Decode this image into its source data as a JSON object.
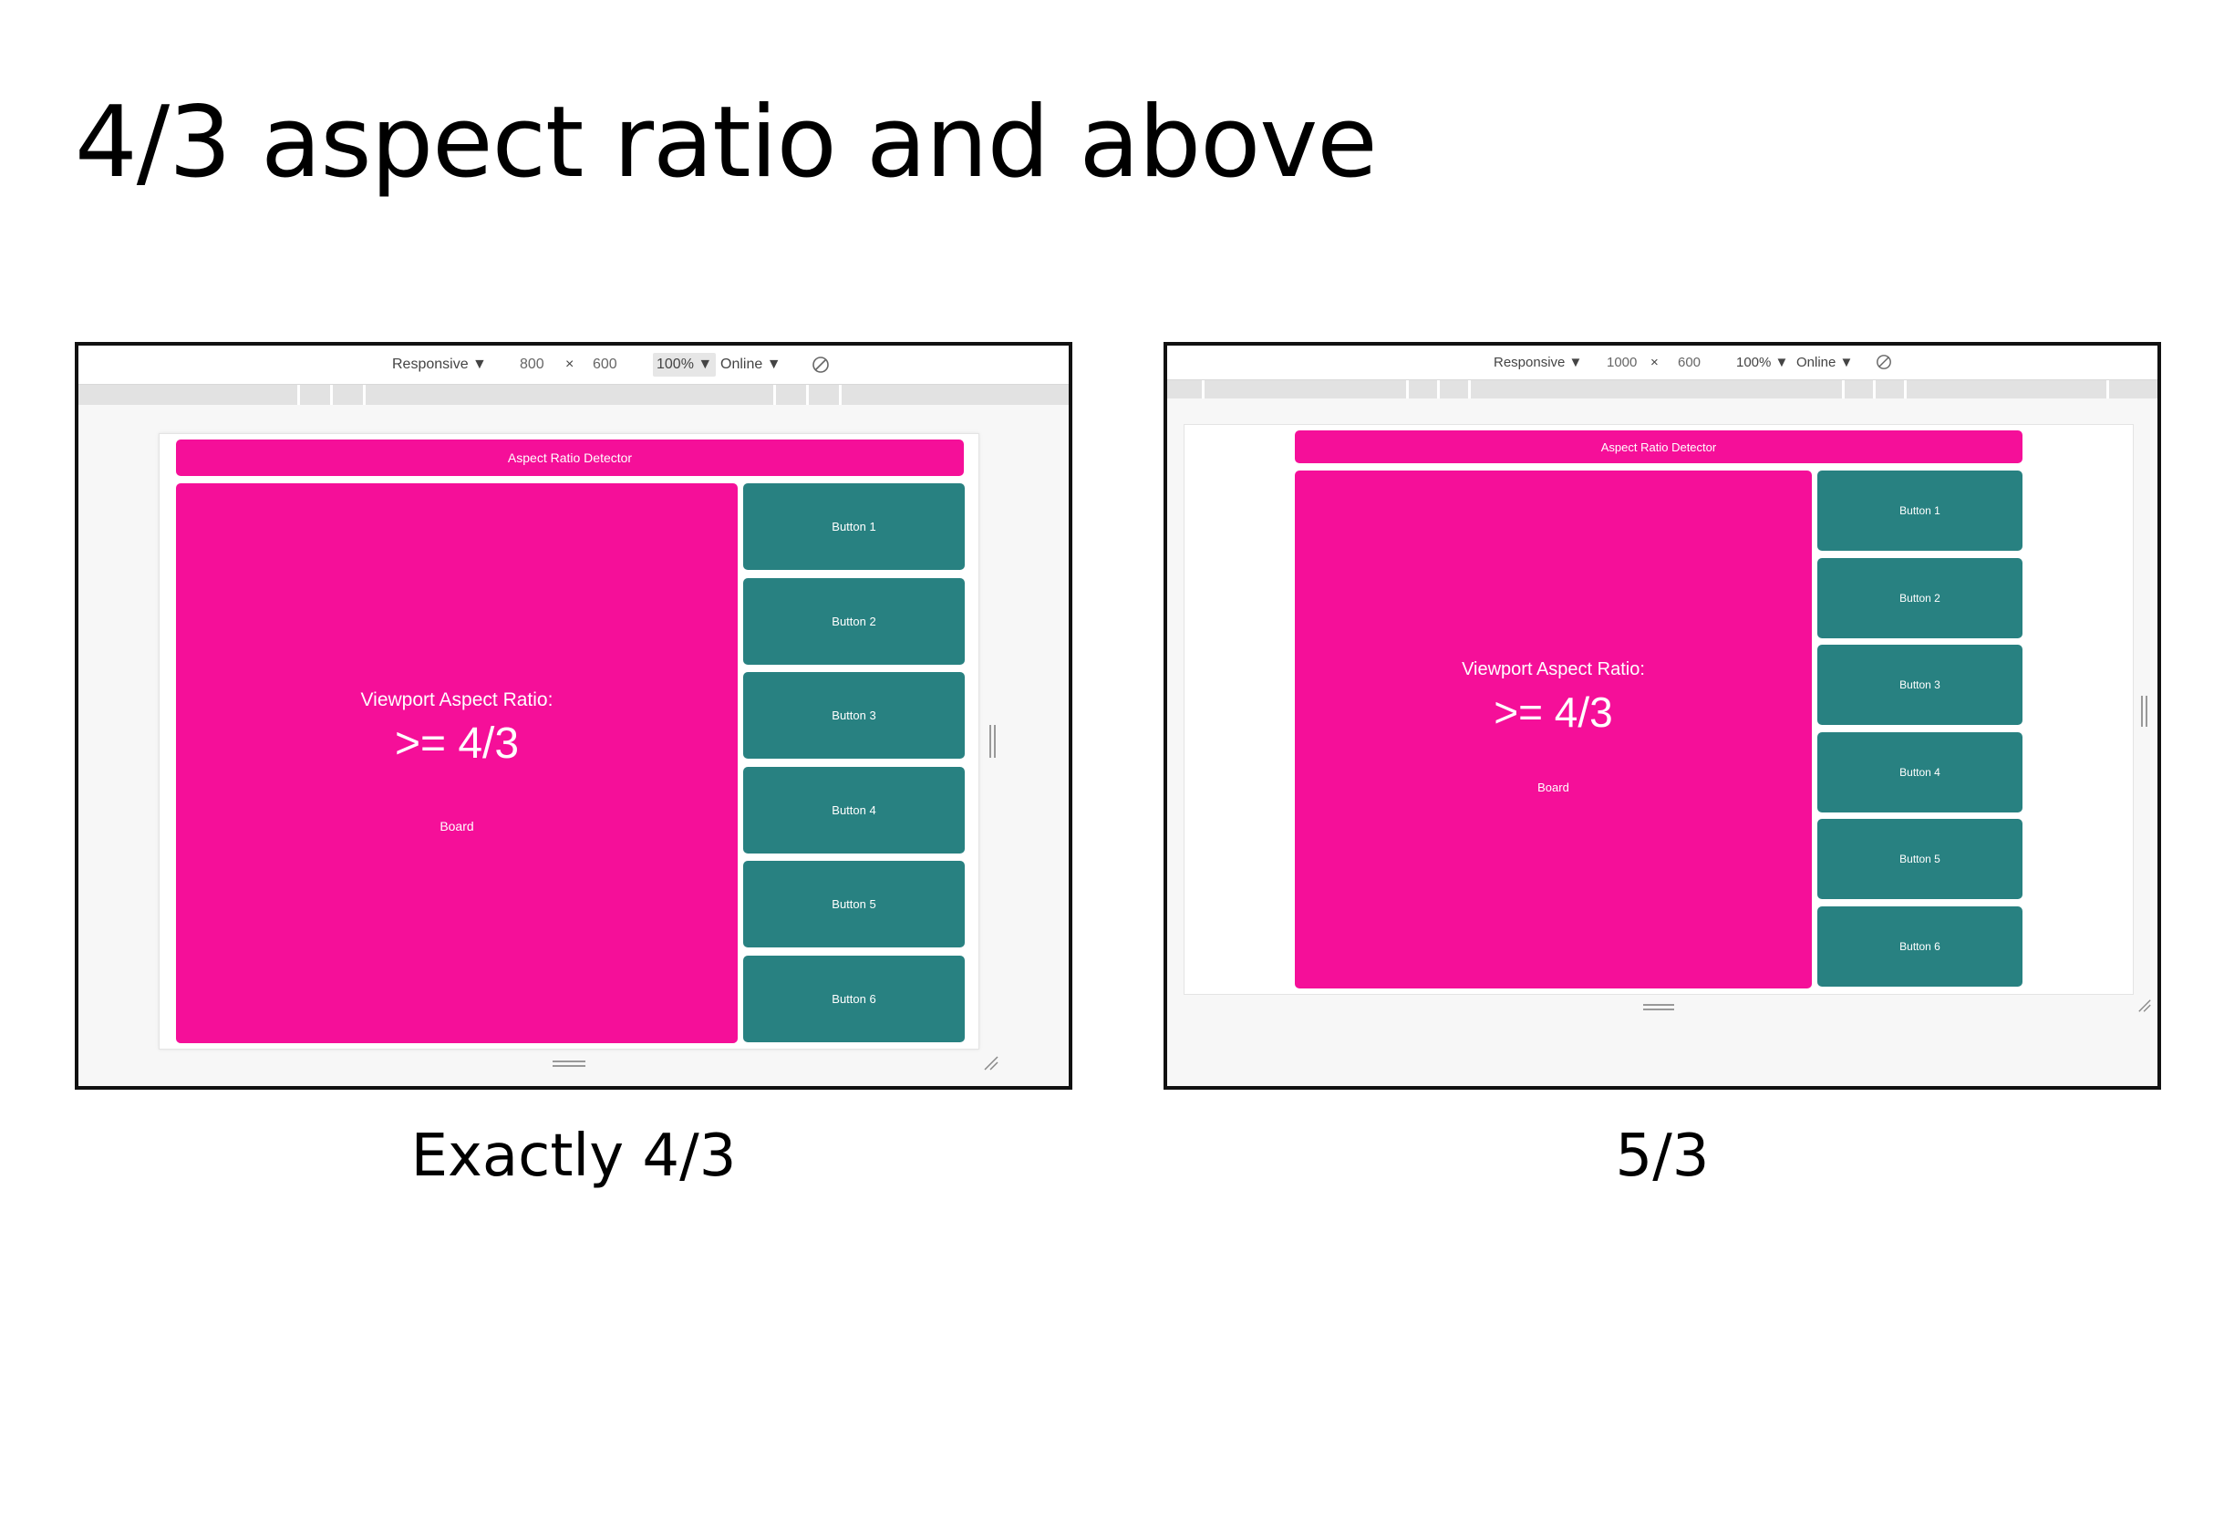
{
  "page": {
    "title": "4/3 aspect ratio and above"
  },
  "panels": [
    {
      "caption": "Exactly 4/3",
      "toolbar": {
        "device": "Responsive ▼",
        "width": "800",
        "times": "×",
        "height": "600",
        "zoom": "100% ▼",
        "throttle": "Online ▼",
        "rotate_icon": "rotate-icon"
      },
      "app": {
        "header": "Aspect Ratio Detector",
        "board_label": "Viewport Aspect Ratio:",
        "board_ratio": ">= 4/3",
        "board_name": "Board",
        "buttons": [
          "Button 1",
          "Button 2",
          "Button 3",
          "Button 4",
          "Button 5",
          "Button 6"
        ]
      }
    },
    {
      "caption": "5/3",
      "toolbar": {
        "device": "Responsive ▼",
        "width": "1000",
        "times": "×",
        "height": "600",
        "zoom": "100% ▼",
        "throttle": "Online ▼",
        "rotate_icon": "rotate-icon"
      },
      "app": {
        "header": "Aspect Ratio Detector",
        "board_label": "Viewport Aspect Ratio:",
        "board_ratio": ">= 4/3",
        "board_name": "Board",
        "buttons": [
          "Button 1",
          "Button 2",
          "Button 3",
          "Button 4",
          "Button 5",
          "Button 6"
        ]
      }
    }
  ],
  "colors": {
    "accent": "#f50f99",
    "button": "#288181"
  }
}
